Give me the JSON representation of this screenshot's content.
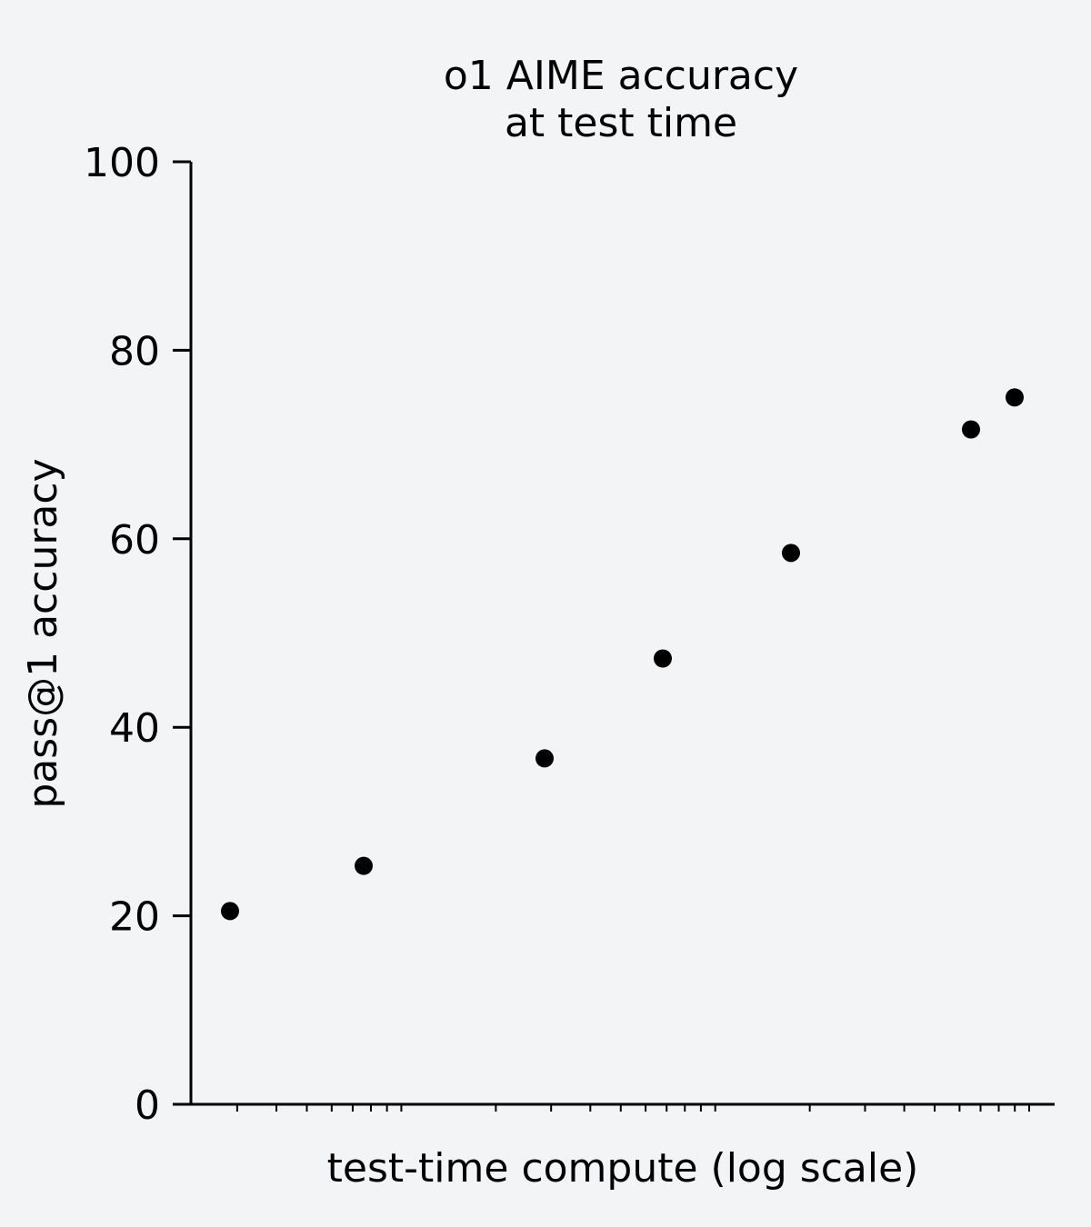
{
  "chart_data": {
    "type": "scatter",
    "title": [
      "o1 AIME accuracy",
      "at test time"
    ],
    "xlabel": "test-time compute (log scale)",
    "ylabel": "pass@1 accuracy",
    "x_scale": "log",
    "x_tick_labels_shown": false,
    "ylim": [
      0,
      100
    ],
    "yticks": [
      0,
      20,
      40,
      60,
      80,
      100
    ],
    "grid": false,
    "point_color": "#000000",
    "background": "#f3f4f6",
    "series": [
      {
        "values": [
          20.5,
          25.3,
          36.7,
          47.3,
          58.5,
          71.6,
          75.0
        ]
      }
    ]
  }
}
